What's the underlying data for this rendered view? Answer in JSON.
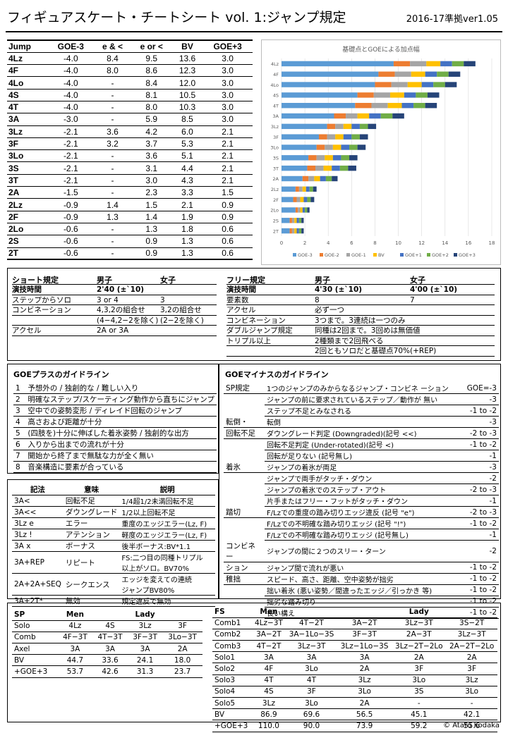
{
  "header": {
    "title": "フィギュアスケート・チートシート vol. 1:ジャンプ規定",
    "version": "2016-17準拠ver1.05"
  },
  "jump_table": {
    "headers": [
      "Jump",
      "GOE-3",
      "e & <",
      "e or <",
      "BV",
      "GOE+3"
    ],
    "rows": [
      [
        "4Lz",
        "-4.0",
        "8.4",
        "9.5",
        "13.6",
        "3.0"
      ],
      [
        "4F",
        "-4.0",
        "8.0",
        "8.6",
        "12.3",
        "3.0"
      ],
      [
        "4Lo",
        "-4.0",
        "-",
        "8.4",
        "12.0",
        "3.0"
      ],
      [
        "4S",
        "-4.0",
        "-",
        "8.1",
        "10.5",
        "3.0"
      ],
      [
        "4T",
        "-4.0",
        "-",
        "8.0",
        "10.3",
        "3.0"
      ],
      [
        "3A",
        "-3.0",
        "-",
        "5.9",
        "8.5",
        "3.0"
      ],
      [
        "3Lz",
        "-2.1",
        "3.6",
        "4.2",
        "6.0",
        "2.1"
      ],
      [
        "3F",
        "-2.1",
        "3.2",
        "3.7",
        "5.3",
        "2.1"
      ],
      [
        "3Lo",
        "-2.1",
        "-",
        "3.6",
        "5.1",
        "2.1"
      ],
      [
        "3S",
        "-2.1",
        "-",
        "3.1",
        "4.4",
        "2.1"
      ],
      [
        "3T",
        "-2.1",
        "-",
        "3.0",
        "4.3",
        "2.1"
      ],
      [
        "2A",
        "-1.5",
        "-",
        "2.3",
        "3.3",
        "1.5"
      ],
      [
        "2Lz",
        "-0.9",
        "1.4",
        "1.5",
        "2.1",
        "0.9"
      ],
      [
        "2F",
        "-0.9",
        "1.3",
        "1.4",
        "1.9",
        "0.9"
      ],
      [
        "2Lo",
        "-0.6",
        "-",
        "1.3",
        "1.8",
        "0.6"
      ],
      [
        "2S",
        "-0.6",
        "-",
        "0.9",
        "1.3",
        "0.6"
      ],
      [
        "2T",
        "-0.6",
        "-",
        "0.9",
        "1.3",
        "0.6"
      ]
    ]
  },
  "chart_data": {
    "type": "bar",
    "orientation": "horizontal-stacked",
    "title": "基礎点とGOEによる加点幅",
    "categories": [
      "4Lz",
      "4F",
      "4Lo",
      "4S",
      "4T",
      "3A",
      "3Lz",
      "3F",
      "3Lo",
      "3S",
      "3T",
      "2A",
      "2Lz",
      "2F",
      "2Lo",
      "2S",
      "2T"
    ],
    "xlim": [
      0,
      18
    ],
    "xticks": [
      "0",
      "2",
      "4",
      "6",
      "8",
      "10",
      "12",
      "14",
      "16",
      "18"
    ],
    "series": [
      {
        "name": "GOE-3",
        "color": "#5b9bd5",
        "values": [
          9.6,
          8.3,
          8.0,
          6.5,
          6.3,
          4.5,
          3.9,
          3.2,
          3.0,
          2.3,
          2.2,
          1.8,
          1.2,
          1.0,
          1.2,
          0.7,
          0.7
        ]
      },
      {
        "name": "GOE-2",
        "color": "#ed7d31",
        "values": [
          1.4,
          1.4,
          1.4,
          1.4,
          1.4,
          1.0,
          0.7,
          0.7,
          0.7,
          0.7,
          0.7,
          0.5,
          0.3,
          0.3,
          0.2,
          0.2,
          0.2
        ]
      },
      {
        "name": "GOE-1",
        "color": "#a5a5a5",
        "values": [
          1.4,
          1.4,
          1.4,
          1.4,
          1.4,
          1.0,
          0.7,
          0.7,
          0.7,
          0.7,
          0.7,
          0.5,
          0.3,
          0.3,
          0.2,
          0.2,
          0.2
        ]
      },
      {
        "name": "BV",
        "color": "#ffc000",
        "values": [
          1.2,
          1.2,
          1.2,
          1.2,
          1.2,
          1.0,
          0.7,
          0.7,
          0.7,
          0.7,
          0.7,
          0.5,
          0.3,
          0.3,
          0.2,
          0.2,
          0.2
        ]
      },
      {
        "name": "GOE+1",
        "color": "#4472c4",
        "values": [
          1.0,
          1.0,
          1.0,
          1.0,
          1.0,
          1.0,
          0.7,
          0.7,
          0.7,
          0.7,
          0.7,
          0.5,
          0.3,
          0.3,
          0.2,
          0.2,
          0.2
        ]
      },
      {
        "name": "GOE+2",
        "color": "#70ad47",
        "values": [
          1.0,
          1.0,
          1.0,
          1.0,
          1.0,
          1.0,
          0.7,
          0.7,
          0.7,
          0.7,
          0.7,
          0.5,
          0.3,
          0.3,
          0.2,
          0.2,
          0.2
        ]
      },
      {
        "name": "GOE+3",
        "color": "#264478",
        "values": [
          1.0,
          1.0,
          1.0,
          1.0,
          1.0,
          1.0,
          0.7,
          0.7,
          0.7,
          0.7,
          0.7,
          0.5,
          0.3,
          0.3,
          0.2,
          0.2,
          0.2
        ]
      }
    ],
    "legend_position": "bottom",
    "grid": true
  },
  "short": {
    "title": "ショート規定",
    "men": "男子",
    "women": "女子",
    "rows": [
      {
        "label": "演技時間",
        "men": "2'40 (±`10)",
        "women": "",
        "bold": true
      },
      {
        "label": "ステップからソロ",
        "men": "3 or 4",
        "women": "3"
      },
      {
        "label": "コンビネーション",
        "men": "4,3,2の組合せ",
        "women": "3,2の組合せ"
      },
      {
        "label": "",
        "men": "(4−4,2−2を除く)",
        "women": "(2−2を除く)"
      },
      {
        "label": "アクセル",
        "men": "2A or 3A",
        "women": ""
      }
    ]
  },
  "free": {
    "title": "フリー規定",
    "men": "男子",
    "women": "女子",
    "rows": [
      {
        "label": "演技時間",
        "men": "4'30 (±`10)",
        "women": "4'00 (±`10)",
        "bold": true
      },
      {
        "label": "要素数",
        "men": "8",
        "women": "7"
      },
      {
        "label": "アクセル",
        "men": "必ず一つ",
        "women": ""
      },
      {
        "label": "コンビネーション",
        "men": "3つまで。3連続は一つのみ",
        "women": ""
      },
      {
        "label": "ダブルジャンプ規定",
        "men": "同種は2回まで。3回めは無価値",
        "women": ""
      },
      {
        "label": "トリプル以上",
        "men": "2種類まで2回飛べる",
        "women": ""
      },
      {
        "label": "",
        "men": "2回ともソロだと基礎点70%(+REP)",
        "women": ""
      }
    ]
  },
  "goe_plus": {
    "title": "GOEプラスのガイドライン",
    "items": [
      [
        "1",
        "予想外の / 独創的な / 難しい入り"
      ],
      [
        "2",
        "明確なステップ/スケーティング動作から直ちにジャンプ"
      ],
      [
        "3",
        "空中での姿勢変形 / ディレイド回転のジャンプ"
      ],
      [
        "4",
        "高さおよび距離が十分"
      ],
      [
        "5",
        "(四肢を)十分に伸ばした着氷姿勢 / 独創的な出方"
      ],
      [
        "6",
        "入りから出までの流れが十分"
      ],
      [
        "7",
        "開始から終了まで無駄な力が全く無い"
      ],
      [
        "8",
        "音楽構造に要素が合っている"
      ]
    ]
  },
  "notation": {
    "headers": [
      "記法",
      "意味",
      "説明"
    ],
    "rows": [
      [
        "3A<",
        "回転不足",
        "1/4超1/2未満回転不足"
      ],
      [
        "3A<<",
        "ダウングレード",
        "1/2以上回転不足"
      ],
      [
        "3Lz e",
        "エラー",
        "重度のエッジエラー(Lz, F)"
      ],
      [
        "3Lz !",
        "アテンション",
        "軽度のエッジエラー(Lz, F)"
      ],
      [
        "3A x",
        "ボーナス",
        "後半ボーナス:BV*1.1"
      ],
      [
        "3A+REP",
        "リピート",
        "FS:二つ目の同種トリプル\n以上がソロ。BV70%"
      ],
      [
        "2A+2A+SEQ",
        "シークエンス",
        "エッジを変えての連続\nジャンプBV80%"
      ],
      [
        "3A+2T*",
        "無効",
        "規定違反で無効"
      ]
    ]
  },
  "goe_minus": {
    "title": "GOEマイナスのガイドライン",
    "rows": [
      [
        "SP規定",
        "1つのジャンプのみからなるジャンプ・コンビネ ーション",
        "GOE=-3"
      ],
      [
        "",
        "ジャンプの前に要求されているステップ／動作が 無い",
        "-3"
      ],
      [
        "",
        "ステップ不足とみなされる",
        "-1 to -2"
      ],
      [
        "転倒・",
        "転倒",
        "-3"
      ],
      [
        "回転不足",
        "ダウングレード判定 (Downgraded)(記号 <<)",
        "-2 to -3"
      ],
      [
        "",
        "回転不足判定 (Under-rotated)(記号 <)",
        "-1 to -2"
      ],
      [
        "",
        "回転が足りない (記号無し)",
        "-1"
      ],
      [
        "着氷",
        "ジャンプの着氷が両足",
        "-3"
      ],
      [
        "",
        "ジャンプで両手がタッチ・ダウン",
        "-2"
      ],
      [
        "",
        "ジャンプの着氷でのステップ・アウト",
        "-2 to -3"
      ],
      [
        "",
        "片手またはフリー・フットがタッチ・ダウン",
        "-1"
      ],
      [
        "踏切",
        "F/Lzでの重度の踏み切りエッジ違反 (記号 \"e\")",
        "-2 to -3"
      ],
      [
        "",
        "F/Lzでの不明確な踏み切りエッジ (記号 \"!\")",
        "-1 to -2"
      ],
      [
        "",
        "F/Lzでの不明確な踏み切りエッジ (記号無し)",
        "-1"
      ],
      [
        "コンビネー",
        "ジャンプの間に２つのスリー・ターン",
        "-2"
      ],
      [
        "ション",
        "ジャンプ間で流れが悪い",
        "-1 to -2"
      ],
      [
        "稚拙",
        "スピード、高さ、距離、空中姿勢が拙劣",
        "-1 to -2"
      ],
      [
        "",
        "拙い着氷 (悪い姿勢／間違ったエッジ／引っかき 等)",
        "-1 to -2"
      ],
      [
        "",
        "拙劣な踏み切り",
        "-1 to -2"
      ],
      [
        "",
        "長い構え",
        "-1 to -2"
      ]
    ]
  },
  "sp_table": {
    "headers": [
      "SP",
      "Men",
      "",
      "Lady",
      ""
    ],
    "rows": [
      [
        "Solo",
        "4Lz",
        "4S",
        "3Lz",
        "3F"
      ],
      [
        "Comb",
        "4F−3T",
        "4T−3T",
        "3F−3T",
        "3Lo−3T"
      ],
      [
        "Axel",
        "3A",
        "3A",
        "3A",
        "2A"
      ],
      [
        "BV",
        "44.7",
        "33.6",
        "24.1",
        "18.0"
      ],
      [
        "+GOE+3",
        "53.7",
        "42.6",
        "31.3",
        "23.7"
      ]
    ]
  },
  "fs_table": {
    "headers": [
      "FS",
      "Men",
      "",
      "",
      "Lady",
      ""
    ],
    "rows": [
      [
        "Comb1",
        "4Lz−3T",
        "4T−2T",
        "3A−2T",
        "3Lz−3T",
        "3S−2T"
      ],
      [
        "Comb2",
        "3A−2T",
        "3A−1Lo−3S",
        "3F−3T",
        "2A−3T",
        "3Lz−3T"
      ],
      [
        "Comb3",
        "4T−2T",
        "3Lz−3T",
        "3Lz−1Lo−3S",
        "3Lz−2T−2Lo",
        "2A−2T−2Lo"
      ],
      [
        "Solo1",
        "3A",
        "3A",
        "3A",
        "2A",
        "2A"
      ],
      [
        "Solo2",
        "4F",
        "3Lo",
        "2A",
        "3F",
        "3F"
      ],
      [
        "Solo3",
        "4T",
        "4T",
        "3Lz",
        "3Lo",
        "3Lz"
      ],
      [
        "Solo4",
        "4S",
        "3F",
        "3Lo",
        "3S",
        "3Lo"
      ],
      [
        "Solo5",
        "3Lz",
        "3Lo",
        "2A",
        "-",
        "-"
      ],
      [
        "BV",
        "86.9",
        "69.6",
        "56.5",
        "45.1",
        "42.1"
      ],
      [
        "+GOE+3",
        "110.0",
        "90.0",
        "73.9",
        "59.2",
        "55.6"
      ]
    ]
  },
  "copyright": "© Ataru Kodaka"
}
